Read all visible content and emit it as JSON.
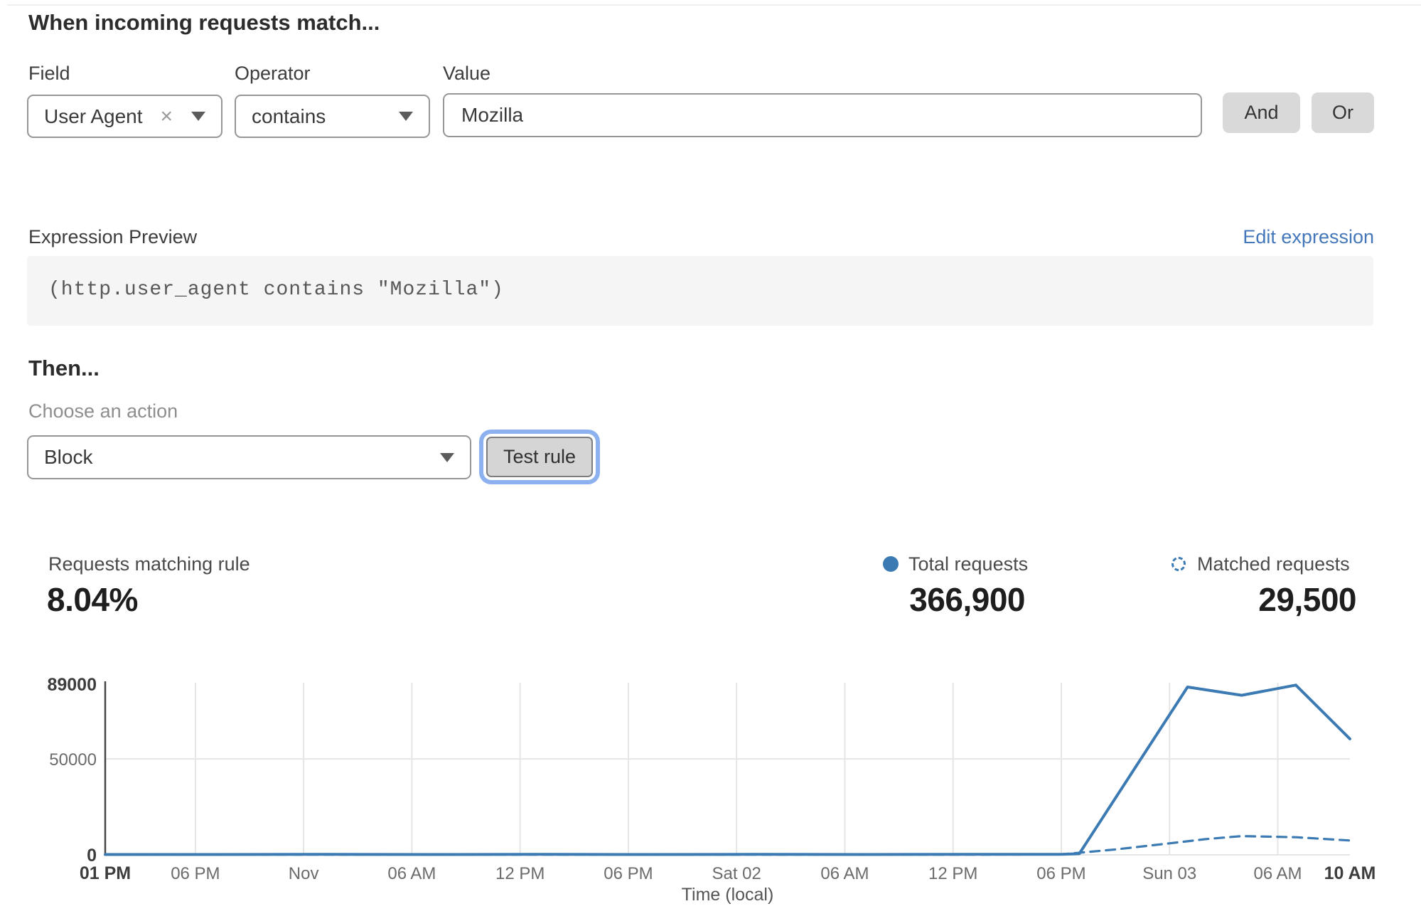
{
  "colors": {
    "accent": "#3b7ab2",
    "link": "#4377ba",
    "focus_ring": "#8cb1ee"
  },
  "header": {
    "title": "When incoming requests match..."
  },
  "rule_builder": {
    "field_label": "Field",
    "field_value": "User Agent",
    "operator_label": "Operator",
    "operator_value": "contains",
    "value_label": "Value",
    "value_text": "Mozilla",
    "and_label": "And",
    "or_label": "Or"
  },
  "icons": {
    "clear_field": "×"
  },
  "expression": {
    "label": "Expression Preview",
    "edit_link": "Edit expression",
    "code": "(http.user_agent contains \"Mozilla\")"
  },
  "action": {
    "heading": "Then...",
    "choose_label": "Choose an action",
    "selected": "Block",
    "test_button": "Test rule"
  },
  "stats": {
    "match_label": "Requests matching rule",
    "match_value": "8.04%",
    "total_label": "Total requests",
    "total_value": "366,900",
    "matched_label": "Matched requests",
    "matched_value": "29,500"
  },
  "chart_data": {
    "type": "line",
    "xlabel": "Time (local)",
    "ylim": [
      0,
      89000
    ],
    "x_hours_range": [
      0,
      69
    ],
    "grid": {
      "vertical_at_ticks": true,
      "horizontal_at": [
        50000,
        0
      ]
    },
    "legend_position": "top-right",
    "x_ticks": [
      {
        "h": 0,
        "label": "01 PM",
        "bold": true
      },
      {
        "h": 5,
        "label": "06 PM",
        "bold": false
      },
      {
        "h": 11,
        "label": "Nov",
        "bold": false
      },
      {
        "h": 17,
        "label": "06 AM",
        "bold": false
      },
      {
        "h": 23,
        "label": "12 PM",
        "bold": false
      },
      {
        "h": 29,
        "label": "06 PM",
        "bold": false
      },
      {
        "h": 35,
        "label": "Sat 02",
        "bold": false
      },
      {
        "h": 41,
        "label": "06 AM",
        "bold": false
      },
      {
        "h": 47,
        "label": "12 PM",
        "bold": false
      },
      {
        "h": 53,
        "label": "06 PM",
        "bold": false
      },
      {
        "h": 59,
        "label": "Sun 03",
        "bold": false
      },
      {
        "h": 65,
        "label": "06 AM",
        "bold": false
      },
      {
        "h": 69,
        "label": "10 AM",
        "bold": true
      }
    ],
    "y_ticks": [
      {
        "v": 89000,
        "label": "89000",
        "bold": true
      },
      {
        "v": 50000,
        "label": "50000",
        "bold": false
      },
      {
        "v": 0,
        "label": "0",
        "bold": true
      }
    ],
    "series": [
      {
        "name": "Total requests",
        "line_style": "solid",
        "color": "#3b7ab2",
        "points": [
          [
            0,
            200
          ],
          [
            6,
            200
          ],
          [
            12,
            250
          ],
          [
            18,
            200
          ],
          [
            24,
            250
          ],
          [
            30,
            200
          ],
          [
            36,
            250
          ],
          [
            42,
            200
          ],
          [
            48,
            250
          ],
          [
            53,
            300
          ],
          [
            54,
            600
          ],
          [
            60,
            87500
          ],
          [
            63,
            83200
          ],
          [
            66,
            88500
          ],
          [
            69,
            60500
          ]
        ]
      },
      {
        "name": "Matched requests",
        "line_style": "dashed",
        "color": "#3b7ab2",
        "points": [
          [
            0,
            120
          ],
          [
            6,
            120
          ],
          [
            12,
            120
          ],
          [
            18,
            120
          ],
          [
            24,
            120
          ],
          [
            30,
            120
          ],
          [
            36,
            120
          ],
          [
            42,
            120
          ],
          [
            48,
            120
          ],
          [
            53,
            250
          ],
          [
            56,
            2800
          ],
          [
            59,
            6000
          ],
          [
            61,
            8200
          ],
          [
            63,
            9800
          ],
          [
            66,
            9200
          ],
          [
            69,
            7500
          ]
        ]
      }
    ]
  }
}
